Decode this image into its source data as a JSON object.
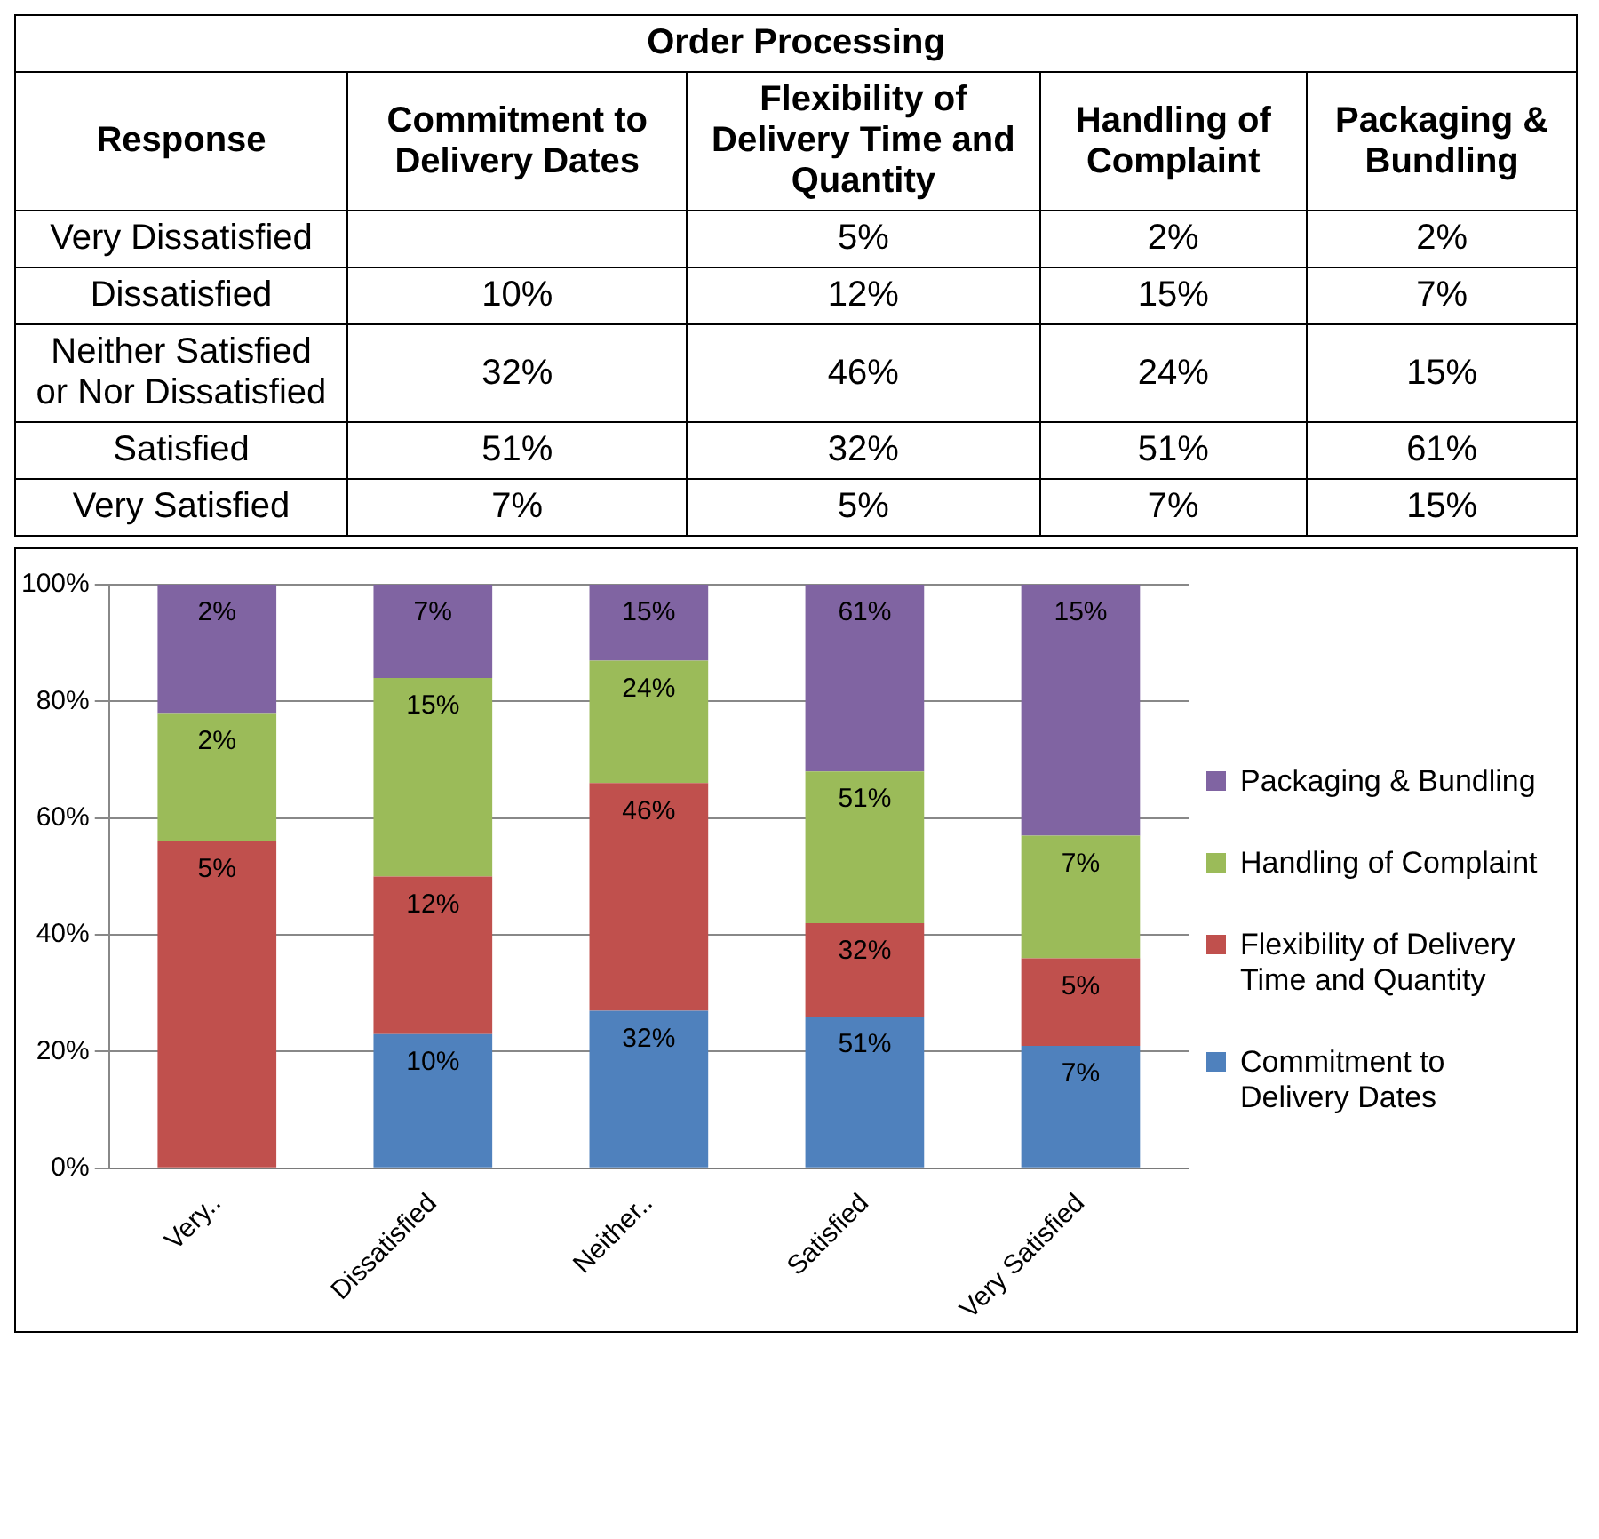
{
  "chart_data": [
    {
      "type": "other",
      "title": "Order Processing",
      "ylabel": "Response",
      "categories": [
        "Commitment to Delivery Dates",
        "Flexibility of Delivery Time and Quantity",
        "Handling of Complaint",
        "Packaging & Bundling"
      ],
      "y_categories": [
        "Very Dissatisfied",
        "Dissatisfied",
        "Neither Satisfied or Nor Dissatisfied",
        "Satisfied",
        "Very Satisfied"
      ],
      "cell_labels": [
        [
          null,
          "5%",
          "2%",
          "2%"
        ],
        [
          "10%",
          "12%",
          "15%",
          "7%"
        ],
        [
          "32%",
          "46%",
          "24%",
          "15%"
        ],
        [
          "51%",
          "32%",
          "51%",
          "61%"
        ],
        [
          "7%",
          "5%",
          "7%",
          "15%"
        ]
      ]
    },
    {
      "type": "bar",
      "stacked": true,
      "categories": [
        "Very..",
        "Dissatisfied",
        "Neither..",
        "Satisfied",
        "Very Satisfied"
      ],
      "series": [
        {
          "name": "Commitment to Delivery Dates",
          "color": "#4f81bd",
          "values": [
            0,
            23,
            27,
            26,
            21
          ]
        },
        {
          "name": "Flexibility of Delivery Time and Quantity",
          "color": "#c0504d",
          "values": [
            56,
            27,
            39,
            16,
            15
          ]
        },
        {
          "name": "Handling of Complaint",
          "color": "#9bbb59",
          "values": [
            22,
            34,
            21,
            26,
            21
          ]
        },
        {
          "name": "Packaging & Bundling",
          "color": "#8064a2",
          "values": [
            22,
            16,
            13,
            32,
            43
          ]
        }
      ],
      "annotations": [
        {
          "text": "10%",
          "x": "Dissatisfied",
          "y": 23
        },
        {
          "text": "32%",
          "x": "Neither..",
          "y": 27
        },
        {
          "text": "51%",
          "x": "Satisfied",
          "y": 26
        },
        {
          "text": "7%",
          "x": "Very Satisfied",
          "y": 21
        },
        {
          "text": "5%",
          "x": "Very..",
          "y": 56
        },
        {
          "text": "12%",
          "x": "Dissatisfied",
          "y": 50
        },
        {
          "text": "46%",
          "x": "Neither..",
          "y": 66
        },
        {
          "text": "32%",
          "x": "Satisfied",
          "y": 42
        },
        {
          "text": "5%",
          "x": "Very Satisfied",
          "y": 36
        },
        {
          "text": "2%",
          "x": "Very..",
          "y": 78
        },
        {
          "text": "15%",
          "x": "Dissatisfied",
          "y": 84
        },
        {
          "text": "24%",
          "x": "Neither..",
          "y": 87
        },
        {
          "text": "51%",
          "x": "Satisfied",
          "y": 68
        },
        {
          "text": "7%",
          "x": "Very Satisfied",
          "y": 57
        },
        {
          "text": "2%",
          "x": "Very..",
          "y": 100
        },
        {
          "text": "7%",
          "x": "Dissatisfied",
          "y": 100
        },
        {
          "text": "15%",
          "x": "Neither..",
          "y": 100
        },
        {
          "text": "61%",
          "x": "Satisfied",
          "y": 100
        },
        {
          "text": "15%",
          "x": "Very Satisfied",
          "y": 100
        }
      ],
      "ylim": [
        0,
        100
      ],
      "yticks": [
        {
          "value": 0,
          "label": "0%"
        },
        {
          "value": 20,
          "label": "20%"
        },
        {
          "value": 40,
          "label": "40%"
        },
        {
          "value": 60,
          "label": "60%"
        },
        {
          "value": 80,
          "label": "80%"
        },
        {
          "value": 100,
          "label": "100%"
        }
      ],
      "grid": "y",
      "legend": "right"
    }
  ]
}
